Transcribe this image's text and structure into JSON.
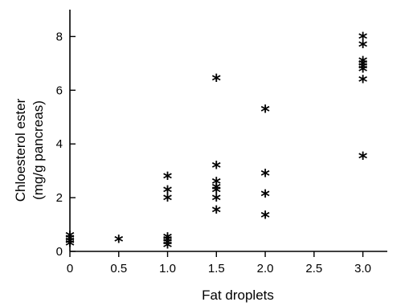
{
  "chart_data": {
    "type": "scatter",
    "title": "",
    "xlabel": "Fat droplets",
    "ylabel_lines": [
      "Chloesterol ester",
      "(mg/g pancreas)"
    ],
    "xlim": [
      0,
      3.25
    ],
    "ylim": [
      0,
      9
    ],
    "x_ticks": [
      0,
      0.5,
      1.0,
      1.5,
      2.0,
      2.5,
      3.0
    ],
    "x_tick_labels": [
      "0",
      "0.5",
      "1.0",
      "1.5",
      "2.0",
      "2.5",
      "3.0"
    ],
    "y_ticks": [
      0,
      2,
      4,
      6,
      8
    ],
    "y_tick_labels": [
      "0",
      "2",
      "4",
      "6",
      "8"
    ],
    "marker": "*",
    "grid": false,
    "points": [
      {
        "x": 0,
        "y": 0.55
      },
      {
        "x": 0,
        "y": 0.45
      },
      {
        "x": 0,
        "y": 0.35
      },
      {
        "x": 0,
        "y": 0.25
      },
      {
        "x": 0.5,
        "y": 0.4
      },
      {
        "x": 1.0,
        "y": 2.75
      },
      {
        "x": 1.0,
        "y": 2.25
      },
      {
        "x": 1.0,
        "y": 1.95
      },
      {
        "x": 1.0,
        "y": 0.5
      },
      {
        "x": 1.0,
        "y": 0.4
      },
      {
        "x": 1.0,
        "y": 0.3
      },
      {
        "x": 1.0,
        "y": 0.2
      },
      {
        "x": 1.5,
        "y": 6.4
      },
      {
        "x": 1.5,
        "y": 3.15
      },
      {
        "x": 1.5,
        "y": 2.55
      },
      {
        "x": 1.5,
        "y": 2.35
      },
      {
        "x": 1.5,
        "y": 2.25
      },
      {
        "x": 1.5,
        "y": 1.95
      },
      {
        "x": 1.5,
        "y": 1.5
      },
      {
        "x": 2.0,
        "y": 5.25
      },
      {
        "x": 2.0,
        "y": 2.85
      },
      {
        "x": 2.0,
        "y": 2.1
      },
      {
        "x": 2.0,
        "y": 1.3
      },
      {
        "x": 3.0,
        "y": 7.95
      },
      {
        "x": 3.0,
        "y": 7.65
      },
      {
        "x": 3.0,
        "y": 7.05
      },
      {
        "x": 3.0,
        "y": 6.95
      },
      {
        "x": 3.0,
        "y": 6.85
      },
      {
        "x": 3.0,
        "y": 6.75
      },
      {
        "x": 3.0,
        "y": 6.35
      },
      {
        "x": 3.0,
        "y": 3.5
      }
    ]
  }
}
